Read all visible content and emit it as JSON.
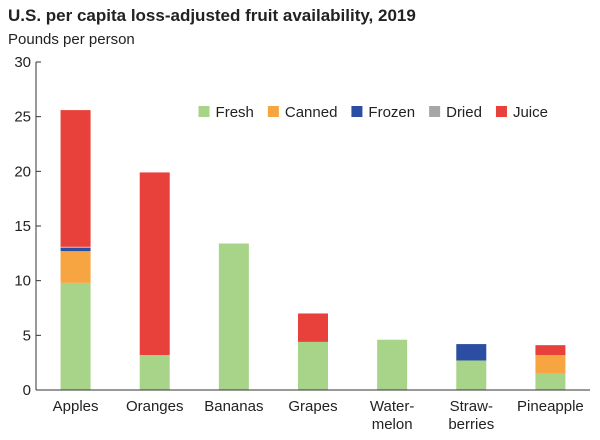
{
  "chart_data": {
    "type": "bar",
    "stacked": true,
    "title": "U.S. per capita loss-adjusted fruit availability, 2019",
    "ylabel": "Pounds per person",
    "xlabel": "",
    "ylim": [
      0,
      30
    ],
    "yticks": [
      0,
      5,
      10,
      15,
      20,
      25,
      30
    ],
    "grid": false,
    "legend_position": "top-right",
    "categories": [
      [
        "Apples"
      ],
      [
        "Oranges"
      ],
      [
        "Bananas"
      ],
      [
        "Grapes"
      ],
      [
        "Water-",
        "melon"
      ],
      [
        "Straw-",
        "berries"
      ],
      [
        "Pineapple"
      ]
    ],
    "series": [
      {
        "name": "Fresh",
        "color": "#a8d48a",
        "values": [
          9.8,
          3.2,
          13.4,
          4.4,
          4.6,
          2.7,
          1.5
        ]
      },
      {
        "name": "Canned",
        "color": "#f7a541",
        "values": [
          2.9,
          0,
          0,
          0,
          0,
          0,
          1.7
        ]
      },
      {
        "name": "Frozen",
        "color": "#2b4ea2",
        "values": [
          0.3,
          0,
          0,
          0,
          0,
          1.5,
          0
        ]
      },
      {
        "name": "Dried",
        "color": "#a6a6a6",
        "values": [
          0.1,
          0,
          0,
          0,
          0,
          0,
          0
        ]
      },
      {
        "name": "Juice",
        "color": "#e8403a",
        "values": [
          12.5,
          16.7,
          0,
          2.6,
          0,
          0,
          0.9
        ]
      }
    ]
  }
}
